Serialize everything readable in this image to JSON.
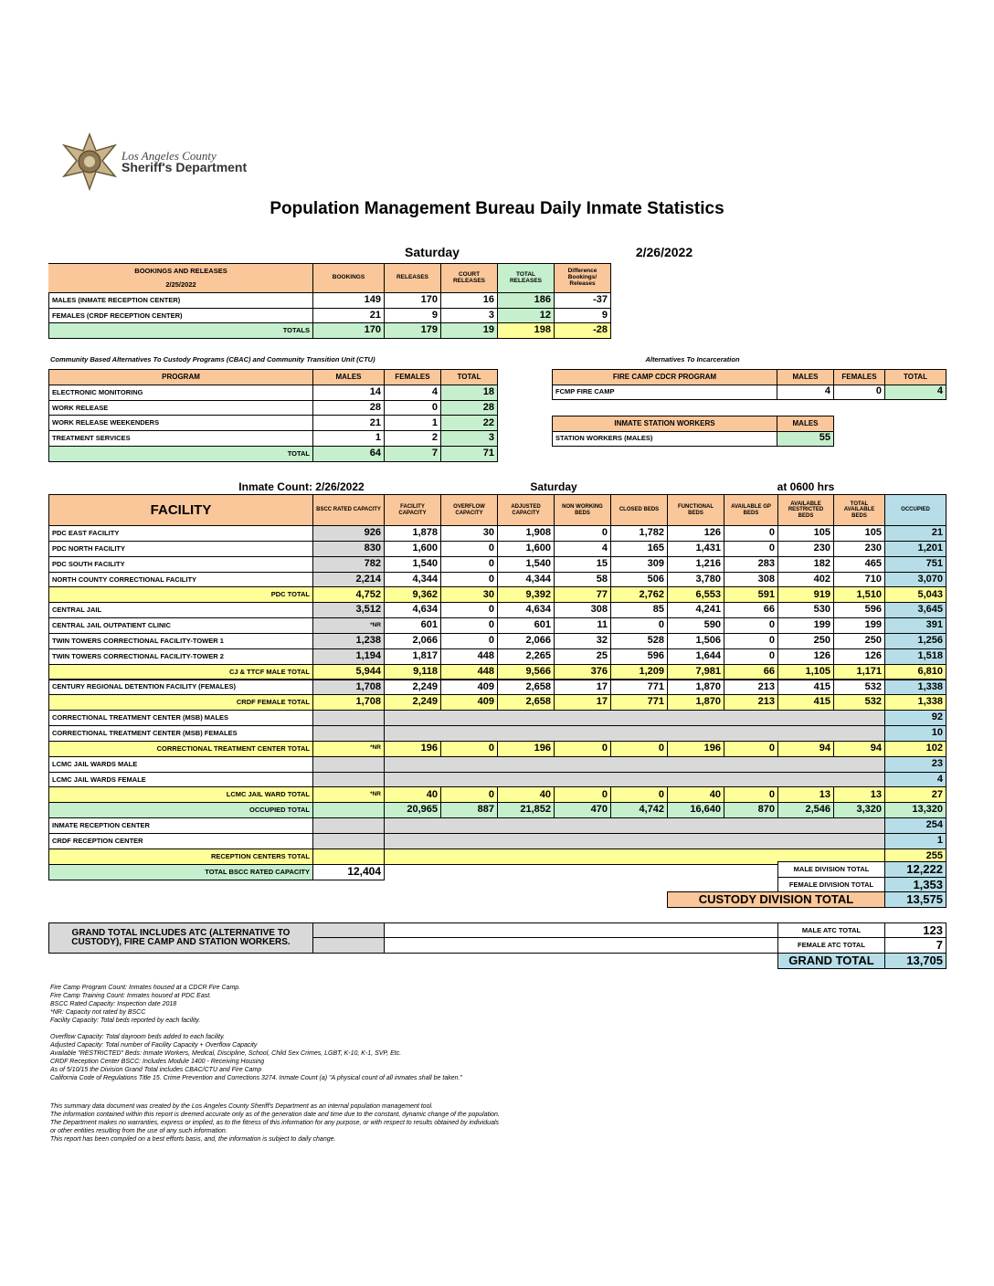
{
  "header": {
    "logo_line1": "Los Angeles County",
    "logo_line2": "Sheriff's Department",
    "title": "Population Management Bureau Daily Inmate Statistics",
    "day": "Saturday",
    "date": "2/26/2022"
  },
  "bookings": {
    "title": "BOOKINGS AND RELEASES",
    "date": "2/25/2022",
    "columns": [
      "BOOKINGS",
      "RELEASES",
      "COURT RELEASES",
      "TOTAL RELEASES",
      "Difference Bookings/ Releases"
    ],
    "rows": [
      [
        "MALES (INMATE RECEPTION CENTER)",
        "149",
        "170",
        "16",
        "186",
        "-37"
      ],
      [
        "FEMALES (CRDF RECEPTION CENTER)",
        "21",
        "9",
        "3",
        "12",
        "9"
      ],
      [
        "TOTALS",
        "170",
        "179",
        "19",
        "198",
        "-28"
      ]
    ]
  },
  "cbac": {
    "title": "Community Based Alternatives To Custody Programs (CBAC) and Community Transition Unit (CTU)",
    "columns": [
      "PROGRAM",
      "MALES",
      "FEMALES",
      "TOTAL"
    ],
    "rows": [
      [
        "ELECTRONIC MONITORING",
        "14",
        "4",
        "18"
      ],
      [
        "WORK RELEASE",
        "28",
        "0",
        "28"
      ],
      [
        "WORK RELEASE WEEKENDERS",
        "21",
        "1",
        "22"
      ],
      [
        "TREATMENT SERVICES",
        "1",
        "2",
        "3"
      ],
      [
        "TOTAL",
        "64",
        "7",
        "71"
      ]
    ]
  },
  "alternatives": {
    "title": "Alternatives To Incarceration",
    "fire_camp": {
      "columns": [
        "FIRE CAMP CDCR PROGRAM",
        "MALES",
        "FEMALES",
        "TOTAL"
      ],
      "rows": [
        [
          "FCMP FIRE CAMP",
          "4",
          "0",
          "4"
        ]
      ]
    },
    "station_workers": {
      "columns": [
        "INMATE STATION WORKERS",
        "MALES"
      ],
      "rows": [
        [
          "STATION WORKERS (MALES)",
          "55"
        ]
      ]
    }
  },
  "inmate_count": {
    "label": "Inmate Count:  2/26/2022",
    "day": "Saturday",
    "time": "at 0600 hrs"
  },
  "facility": {
    "columns": [
      "FACILITY",
      "BSCC RATED CAPACITY",
      "FACILITY CAPACITY",
      "OVERFLOW CAPACITY",
      "ADJUSTED CAPACITY",
      "NON WORKING BEDS",
      "CLOSED BEDS",
      "FUNCTIONAL BEDS",
      "AVAILABLE GP BEDS",
      "AVAILABLE RESTRICTED BEDS",
      "TOTAL AVAILABLE BEDS",
      "OCCUPIED"
    ],
    "rows": [
      [
        "PDC EAST FACILITY",
        "926",
        "1,878",
        "30",
        "1,908",
        "0",
        "1,782",
        "126",
        "0",
        "105",
        "105",
        "21"
      ],
      [
        "PDC NORTH FACILITY",
        "830",
        "1,600",
        "0",
        "1,600",
        "4",
        "165",
        "1,431",
        "0",
        "230",
        "230",
        "1,201"
      ],
      [
        "PDC SOUTH FACILITY",
        "782",
        "1,540",
        "0",
        "1,540",
        "15",
        "309",
        "1,216",
        "283",
        "182",
        "465",
        "751"
      ],
      [
        "NORTH COUNTY CORRECTIONAL FACILITY",
        "2,214",
        "4,344",
        "0",
        "4,344",
        "58",
        "506",
        "3,780",
        "308",
        "402",
        "710",
        "3,070"
      ],
      [
        "PDC TOTAL",
        "4,752",
        "9,362",
        "30",
        "9,392",
        "77",
        "2,762",
        "6,553",
        "591",
        "919",
        "1,510",
        "5,043"
      ],
      [
        "CENTRAL JAIL",
        "3,512",
        "4,634",
        "0",
        "4,634",
        "308",
        "85",
        "4,241",
        "66",
        "530",
        "596",
        "3,645"
      ],
      [
        "CENTRAL JAIL OUTPATIENT CLINIC",
        "*NR",
        "601",
        "0",
        "601",
        "11",
        "0",
        "590",
        "0",
        "199",
        "199",
        "391"
      ],
      [
        "TWIN TOWERS CORRECTIONAL FACILITY-TOWER 1",
        "1,238",
        "2,066",
        "0",
        "2,066",
        "32",
        "528",
        "1,506",
        "0",
        "250",
        "250",
        "1,256"
      ],
      [
        "TWIN TOWERS CORRECTIONAL FACILITY-TOWER 2",
        "1,194",
        "1,817",
        "448",
        "2,265",
        "25",
        "596",
        "1,644",
        "0",
        "126",
        "126",
        "1,518"
      ],
      [
        "CJ & TTCF MALE TOTAL",
        "5,944",
        "9,118",
        "448",
        "9,566",
        "376",
        "1,209",
        "7,981",
        "66",
        "1,105",
        "1,171",
        "6,810"
      ],
      [
        "CENTURY REGIONAL DETENTION FACILITY (FEMALES)",
        "1,708",
        "2,249",
        "409",
        "2,658",
        "17",
        "771",
        "1,870",
        "213",
        "415",
        "532",
        "1,338"
      ],
      [
        "CRDF FEMALE TOTAL",
        "1,708",
        "2,249",
        "409",
        "2,658",
        "17",
        "771",
        "1,870",
        "213",
        "415",
        "532",
        "1,338"
      ],
      [
        "CORRECTIONAL TREATMENT CENTER (MSB) MALES",
        null,
        null,
        null,
        null,
        null,
        null,
        null,
        null,
        null,
        null,
        "92"
      ],
      [
        "CORRECTIONAL TREATMENT CENTER (MSB) FEMALES",
        null,
        null,
        null,
        null,
        null,
        null,
        null,
        null,
        null,
        null,
        "10"
      ],
      [
        "CORRECTIONAL TREATMENT CENTER  TOTAL",
        "*NR",
        "196",
        "0",
        "196",
        "0",
        "0",
        "196",
        "0",
        "94",
        "94",
        "102"
      ],
      [
        "LCMC JAIL WARDS MALE",
        null,
        null,
        null,
        null,
        null,
        null,
        null,
        null,
        null,
        null,
        "23"
      ],
      [
        "LCMC JAIL WARDS FEMALE",
        null,
        null,
        null,
        null,
        null,
        null,
        null,
        null,
        null,
        null,
        "4"
      ],
      [
        "LCMC JAIL WARD TOTAL",
        "*NR",
        "40",
        "0",
        "40",
        "0",
        "0",
        "40",
        "0",
        "13",
        "13",
        "27"
      ],
      [
        "OCCUPIED TOTAL",
        null,
        "20,965",
        "887",
        "21,852",
        "470",
        "4,742",
        "16,640",
        "870",
        "2,546",
        "3,320",
        "13,320"
      ],
      [
        "INMATE RECEPTION CENTER",
        null,
        null,
        null,
        null,
        null,
        null,
        null,
        null,
        null,
        null,
        "254"
      ],
      [
        "CRDF RECEPTION CENTER",
        null,
        null,
        null,
        null,
        null,
        null,
        null,
        null,
        null,
        null,
        "1"
      ],
      [
        "RECEPTION CENTERS TOTAL",
        null,
        null,
        null,
        null,
        null,
        null,
        null,
        null,
        null,
        null,
        "255"
      ],
      [
        "TOTAL BSCC RATED CAPACITY",
        "12,404",
        null,
        null,
        null,
        null,
        null,
        null,
        null,
        null,
        null,
        null
      ]
    ]
  },
  "division_totals": [
    [
      "MALE DIVISION TOTAL",
      "12,222"
    ],
    [
      "FEMALE DIVISION TOTAL",
      "1,353"
    ],
    [
      "CUSTODY DIVISION TOTAL",
      "13,575"
    ]
  ],
  "grand_total": {
    "note": "GRAND TOTAL INCLUDES ATC (ALTERNATIVE TO CUSTODY), FIRE CAMP AND STATION WORKERS.",
    "rows": [
      [
        "MALE ATC TOTAL",
        "123"
      ],
      [
        "FEMALE ATC TOTAL",
        "7"
      ],
      [
        "GRAND TOTAL",
        "13,705"
      ]
    ]
  },
  "footnotes": [
    "Fire Camp Program Count: Inmates housed at a CDCR Fire Camp.",
    "Fire Camp Training Count: Inmates housed at PDC East.",
    "BSCC Rated Capacity: Inspection date 2018",
    "*NR: Capacity not rated by BSCC",
    "Facility Capacity: Total beds reported by each facility.",
    "Overflow Capacity: Total dayroom beds added to each facility.",
    "Adjusted Capacity: Total number of Facility Capacity + Overflow Capacity",
    "Available \"RESTRICTED\" Beds: Inmate Workers, Medical, Discipline, School, Child Sex Crimes,  LGBT, K-10, K-1, SVP, Etc.",
    "CRDF Reception Center BSCC: Includes Module 1400 - Receiving Housing",
    "As of 5/10/15 the Division Grand Total includes CBAC/CTU and Fire Camp",
    "California Code of Regulations Title 15. Crime Prevention and Corrections 3274. Inmate Count (a) \"A physical count of all inmates shall be taken.\""
  ],
  "disclaimer": [
    "This summary data document was created by the Los Angeles County Sheriff's Department as an internal population management tool.",
    "The information contained within this report is deemed accurate only as of the generation date and time due to the constant, dynamic change of the population.",
    "The Department makes no warranties, express or implied, as to the fitness of this information for any purpose, or with respect to results obtained by individuals",
    "or other entities resulting from the use of any such information.",
    "This report has been compiled on a best efforts basis, and, the information is subject to daily change."
  ]
}
